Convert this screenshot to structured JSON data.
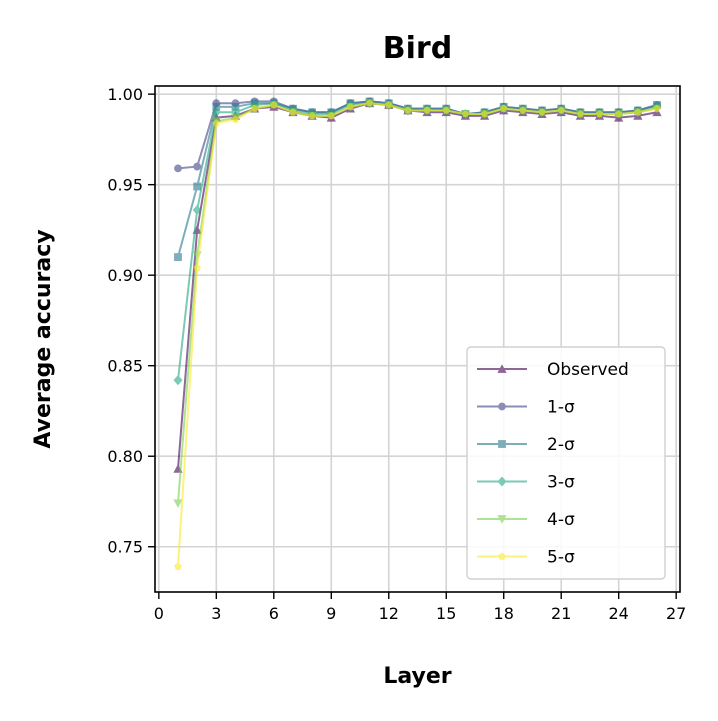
{
  "chart_data": {
    "type": "line",
    "title": "Bird",
    "xlabel": "Layer",
    "ylabel": "Average accuracy",
    "xlim": [
      -0.2,
      27.2
    ],
    "ylim": [
      0.725,
      1.0045
    ],
    "xticks": [
      0,
      3,
      6,
      9,
      12,
      15,
      18,
      21,
      24,
      27
    ],
    "xtick_labels": [
      "0",
      "3",
      "6",
      "9",
      "12",
      "15",
      "18",
      "21",
      "24",
      "27"
    ],
    "yticks": [
      0.75,
      0.8,
      0.85,
      0.9,
      0.95,
      1.0
    ],
    "ytick_labels": [
      "0.75",
      "0.80",
      "0.85",
      "0.90",
      "0.95",
      "1.00"
    ],
    "grid": true,
    "legend_position": "lower-right",
    "x": [
      1,
      2,
      3,
      4,
      5,
      6,
      7,
      8,
      9,
      10,
      11,
      12,
      13,
      14,
      15,
      16,
      17,
      18,
      19,
      20,
      21,
      22,
      23,
      24,
      25,
      26
    ],
    "series": [
      {
        "name": "Observed",
        "color": "#440154",
        "marker": "triangle-up",
        "values": [
          0.793,
          0.925,
          0.987,
          0.988,
          0.992,
          0.993,
          0.99,
          0.988,
          0.987,
          0.992,
          0.995,
          0.994,
          0.991,
          0.99,
          0.99,
          0.988,
          0.988,
          0.991,
          0.99,
          0.989,
          0.99,
          0.988,
          0.988,
          0.987,
          0.988,
          0.99
        ]
      },
      {
        "name": "1-σ",
        "color": "#414487",
        "marker": "circle",
        "values": [
          0.959,
          0.96,
          0.995,
          0.995,
          0.996,
          0.996,
          0.992,
          0.99,
          0.99,
          0.995,
          0.996,
          0.995,
          0.992,
          0.992,
          0.992,
          0.989,
          0.99,
          0.993,
          0.992,
          0.991,
          0.992,
          0.99,
          0.99,
          0.99,
          0.991,
          0.994
        ]
      },
      {
        "name": "2-σ",
        "color": "#2a788e",
        "marker": "square",
        "values": [
          0.91,
          0.949,
          0.993,
          0.993,
          0.995,
          0.995,
          0.992,
          0.99,
          0.99,
          0.995,
          0.996,
          0.995,
          0.992,
          0.992,
          0.992,
          0.989,
          0.99,
          0.993,
          0.992,
          0.991,
          0.992,
          0.99,
          0.99,
          0.99,
          0.991,
          0.994
        ]
      },
      {
        "name": "3-σ",
        "color": "#22a884",
        "marker": "diamond",
        "values": [
          0.842,
          0.936,
          0.99,
          0.99,
          0.994,
          0.995,
          0.991,
          0.989,
          0.989,
          0.994,
          0.995,
          0.994,
          0.991,
          0.991,
          0.991,
          0.989,
          0.989,
          0.992,
          0.991,
          0.99,
          0.991,
          0.989,
          0.989,
          0.989,
          0.99,
          0.993
        ]
      },
      {
        "name": "4-σ",
        "color": "#7ad151",
        "marker": "triangle-down",
        "values": [
          0.774,
          0.911,
          0.985,
          0.987,
          0.992,
          0.994,
          0.99,
          0.988,
          0.988,
          0.993,
          0.995,
          0.994,
          0.991,
          0.991,
          0.991,
          0.989,
          0.989,
          0.992,
          0.991,
          0.99,
          0.991,
          0.989,
          0.989,
          0.989,
          0.99,
          0.992
        ]
      },
      {
        "name": "5-σ",
        "color": "#fde725",
        "marker": "pentagon",
        "values": [
          0.739,
          0.904,
          0.984,
          0.986,
          0.992,
          0.994,
          0.99,
          0.988,
          0.988,
          0.993,
          0.995,
          0.994,
          0.991,
          0.991,
          0.991,
          0.989,
          0.989,
          0.992,
          0.991,
          0.99,
          0.991,
          0.989,
          0.989,
          0.989,
          0.99,
          0.992
        ]
      }
    ]
  }
}
